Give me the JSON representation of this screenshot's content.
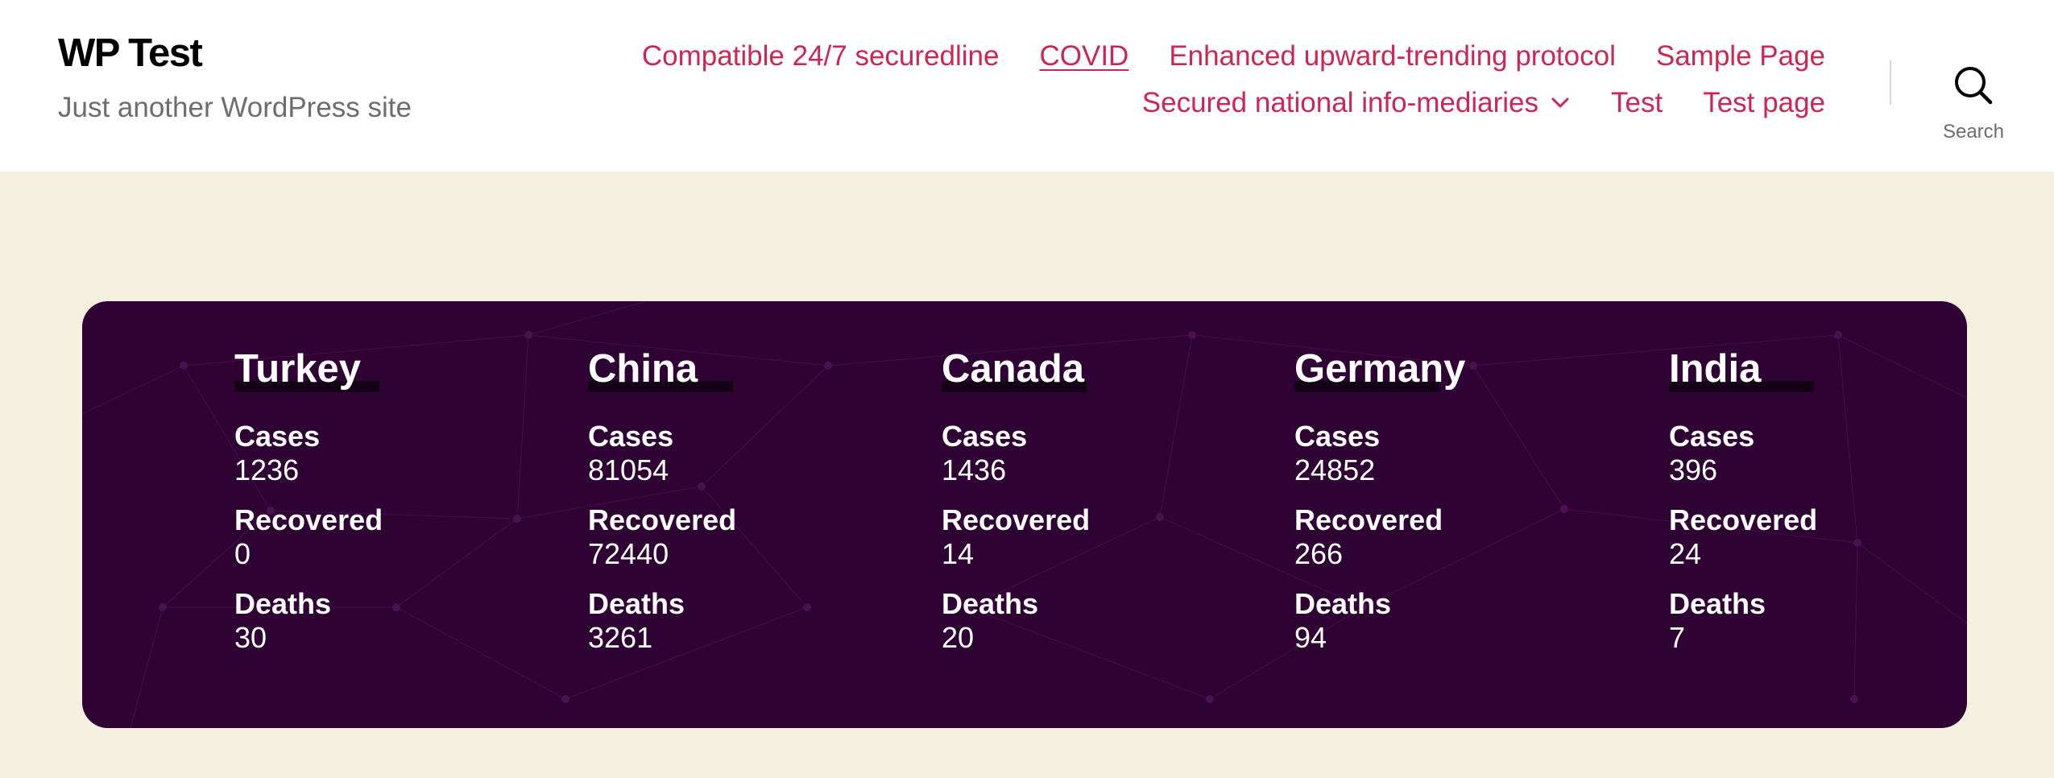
{
  "header": {
    "site_title": "WP Test",
    "site_description": "Just another WordPress site",
    "menu_row1": [
      {
        "label": "Compatible 24/7 securedline"
      },
      {
        "label": "COVID",
        "current": true
      },
      {
        "label": "Enhanced upward-trending protocol"
      },
      {
        "label": "Sample Page"
      }
    ],
    "menu_row2": [
      {
        "label": "Secured national info-mediaries",
        "has_submenu": true
      },
      {
        "label": "Test"
      },
      {
        "label": "Test page"
      }
    ],
    "search_label": "Search",
    "icons": {
      "search": "search-icon",
      "submenu": "chevron-down-icon"
    }
  },
  "colors": {
    "accent": "#cd2653",
    "header_bg": "#ffffff",
    "page_bg": "#f5efe0",
    "panel_bg": "#2e0232",
    "panel_text": "#ffffff"
  },
  "covid": {
    "stat_labels": {
      "cases": "Cases",
      "recovered": "Recovered",
      "deaths": "Deaths"
    },
    "countries": [
      {
        "name": "Turkey",
        "cases": "1236",
        "recovered": "0",
        "deaths": "30"
      },
      {
        "name": "China",
        "cases": "81054",
        "recovered": "72440",
        "deaths": "3261"
      },
      {
        "name": "Canada",
        "cases": "1436",
        "recovered": "14",
        "deaths": "20"
      },
      {
        "name": "Germany",
        "cases": "24852",
        "recovered": "266",
        "deaths": "94"
      },
      {
        "name": "India",
        "cases": "396",
        "recovered": "24",
        "deaths": "7"
      }
    ]
  }
}
